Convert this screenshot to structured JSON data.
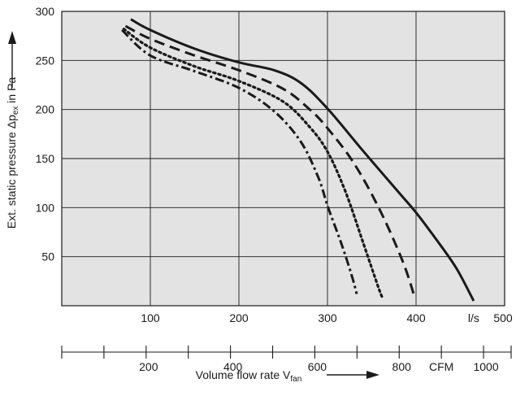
{
  "chart_data": {
    "type": "line",
    "ylabel": {
      "main": "Ext. static pressure Δp",
      "sub": "ex",
      "tail": " in Pa"
    },
    "xlabel": {
      "main": "Volume flow rate V",
      "sub": "fan"
    },
    "x_unit": "l/s",
    "x2_unit": "CFM",
    "xlim": [
      0,
      500
    ],
    "ylim": [
      0,
      300
    ],
    "x2lim": [
      0,
      1050
    ],
    "x_ticks": [
      100,
      200,
      300,
      400,
      500
    ],
    "y_ticks": [
      50,
      100,
      150,
      200,
      250,
      300
    ],
    "x2_ticks_major": [
      200,
      400,
      600,
      800,
      1000
    ],
    "x2_ticks_minor": [
      100,
      300,
      500,
      700,
      900
    ],
    "grid": true,
    "colors": {
      "background": "#e3e3e3",
      "line": "#1a1a1a"
    },
    "series": [
      {
        "style": "solid",
        "x": [
          78,
          100,
          150,
          200,
          240,
          270,
          300,
          340,
          380,
          400,
          420,
          445,
          465
        ],
        "y": [
          292,
          281,
          262,
          248,
          240,
          227,
          201,
          158,
          116,
          95,
          71,
          39,
          5
        ]
      },
      {
        "style": "dashed",
        "x": [
          72,
          100,
          150,
          200,
          250,
          280,
          300,
          330,
          360,
          385,
          398
        ],
        "y": [
          285,
          272,
          255,
          240,
          221,
          200,
          181,
          145,
          96,
          45,
          10
        ]
      },
      {
        "style": "dotted",
        "x": [
          70,
          100,
          150,
          200,
          250,
          280,
          300,
          320,
          340,
          357,
          362
        ],
        "y": [
          282,
          263,
          244,
          229,
          208,
          182,
          157,
          117,
          65,
          20,
          8
        ]
      },
      {
        "style": "dashdot",
        "x": [
          68,
          100,
          150,
          200,
          240,
          270,
          290,
          300,
          315,
          327,
          333
        ],
        "y": [
          281,
          255,
          239,
          222,
          198,
          167,
          130,
          102,
          65,
          32,
          12
        ]
      }
    ]
  }
}
